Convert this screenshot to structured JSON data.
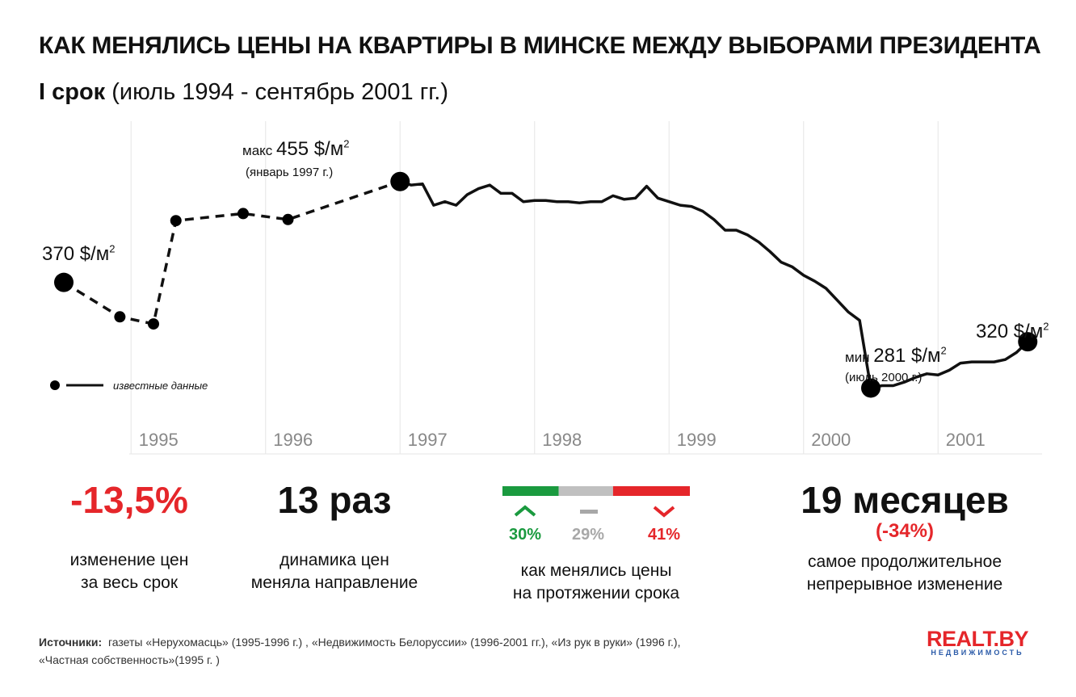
{
  "header": {
    "title": "КАК МЕНЯЛИСЬ ЦЕНЫ НА КВАРТИРЫ В МИНСКЕ МЕЖДУ ВЫБОРАМИ ПРЕЗИДЕНТА",
    "subtitle_bold": "I срок",
    "subtitle_rest": " (июль 1994 - сентябрь 2001 гг.)"
  },
  "chart_data": {
    "type": "line",
    "title": "КАК МЕНЯЛИСЬ ЦЕНЫ НА КВАРТИРЫ В МИНСКЕ МЕЖДУ ВЫБОРАМИ ПРЕЗИДЕНТА",
    "subtitle": "I срок (июль 1994 - сентябрь 2001 гг.)",
    "unit": "$/м²",
    "x_tick_labels": [
      "1995",
      "1996",
      "1997",
      "1998",
      "1999",
      "2000",
      "2001"
    ],
    "grid": "vertical",
    "ylim": [
      250,
      480
    ],
    "known_data": {
      "name": "известные данные",
      "style": "dashed",
      "points": [
        {
          "x": "1994-07",
          "y": 370
        },
        {
          "x": "1994-12",
          "y": 341
        },
        {
          "x": "1995-03",
          "y": 335
        },
        {
          "x": "1995-05",
          "y": 422
        },
        {
          "x": "1995-11",
          "y": 428
        },
        {
          "x": "1996-03",
          "y": 423
        },
        {
          "x": "1997-01",
          "y": 455
        }
      ]
    },
    "series": [
      {
        "style": "solid",
        "points": [
          {
            "x": "1997-01",
            "y": 455
          },
          {
            "x": "1997-02",
            "y": 452
          },
          {
            "x": "1997-03",
            "y": 453
          },
          {
            "x": "1997-04",
            "y": 435
          },
          {
            "x": "1997-05",
            "y": 438
          },
          {
            "x": "1997-06",
            "y": 435
          },
          {
            "x": "1997-07",
            "y": 444
          },
          {
            "x": "1997-08",
            "y": 449
          },
          {
            "x": "1997-09",
            "y": 452
          },
          {
            "x": "1997-10",
            "y": 445
          },
          {
            "x": "1997-11",
            "y": 445
          },
          {
            "x": "1997-12",
            "y": 438
          },
          {
            "x": "1998-01",
            "y": 439
          },
          {
            "x": "1998-02",
            "y": 439
          },
          {
            "x": "1998-03",
            "y": 438
          },
          {
            "x": "1998-04",
            "y": 438
          },
          {
            "x": "1998-05",
            "y": 437
          },
          {
            "x": "1998-06",
            "y": 438
          },
          {
            "x": "1998-07",
            "y": 438
          },
          {
            "x": "1998-08",
            "y": 443
          },
          {
            "x": "1998-09",
            "y": 440
          },
          {
            "x": "1998-10",
            "y": 441
          },
          {
            "x": "1998-11",
            "y": 451
          },
          {
            "x": "1998-12",
            "y": 441
          },
          {
            "x": "1999-01",
            "y": 438
          },
          {
            "x": "1999-02",
            "y": 435
          },
          {
            "x": "1999-03",
            "y": 434
          },
          {
            "x": "1999-04",
            "y": 430
          },
          {
            "x": "1999-05",
            "y": 423
          },
          {
            "x": "1999-06",
            "y": 414
          },
          {
            "x": "1999-07",
            "y": 414
          },
          {
            "x": "1999-08",
            "y": 410
          },
          {
            "x": "1999-09",
            "y": 404
          },
          {
            "x": "1999-10",
            "y": 396
          },
          {
            "x": "1999-11",
            "y": 387
          },
          {
            "x": "1999-12",
            "y": 383
          },
          {
            "x": "2000-01",
            "y": 376
          },
          {
            "x": "2000-02",
            "y": 371
          },
          {
            "x": "2000-03",
            "y": 365
          },
          {
            "x": "2000-04",
            "y": 355
          },
          {
            "x": "2000-05",
            "y": 345
          },
          {
            "x": "2000-06",
            "y": 338
          },
          {
            "x": "2000-07",
            "y": 281
          },
          {
            "x": "2000-08",
            "y": 283
          },
          {
            "x": "2000-09",
            "y": 283
          },
          {
            "x": "2000-10",
            "y": 286
          },
          {
            "x": "2000-11",
            "y": 290
          },
          {
            "x": "2000-12",
            "y": 293
          },
          {
            "x": "2001-01",
            "y": 292
          },
          {
            "x": "2001-02",
            "y": 296
          },
          {
            "x": "2001-03",
            "y": 302
          },
          {
            "x": "2001-04",
            "y": 303
          },
          {
            "x": "2001-05",
            "y": 303
          },
          {
            "x": "2001-06",
            "y": 303
          },
          {
            "x": "2001-07",
            "y": 305
          },
          {
            "x": "2001-08",
            "y": 311
          },
          {
            "x": "2001-09",
            "y": 320
          }
        ]
      }
    ],
    "annotations": {
      "start": {
        "value": "370 $/м",
        "sup": "2"
      },
      "max": {
        "prefix": "макс ",
        "value": "455 $/м",
        "sup": "2",
        "date": "(январь 1997 г.)"
      },
      "min": {
        "prefix": "мин ",
        "value": "281 $/м",
        "sup": "2",
        "date": "(июль 2000 г.)"
      },
      "end": {
        "value": "320 $/м",
        "sup": "2"
      }
    },
    "legend": {
      "label": "известные данные",
      "placement": "bottom-left"
    }
  },
  "stats": {
    "change": {
      "value": "-13,5%",
      "desc1": "изменение цен",
      "desc2": "за весь срок",
      "color": "#e5262a"
    },
    "direction": {
      "value": "13 раз",
      "desc1": "динамика цен",
      "desc2": "меняла направление"
    },
    "distribution": {
      "up": {
        "value": "30%",
        "fraction": 0.3,
        "color": "#1a9a3f"
      },
      "flat": {
        "value": "29%",
        "fraction": 0.29,
        "color": "#c0c0c0"
      },
      "down": {
        "value": "41%",
        "fraction": 0.41,
        "color": "#e5262a"
      },
      "desc1": "как менялись цены",
      "desc2": "на протяжении срока"
    },
    "longest": {
      "value": "19 месяцев",
      "change": "(-34%)",
      "desc1": "самое продолжительное",
      "desc2": "непрерывное изменение"
    }
  },
  "footer": {
    "sources_label": "Источники:",
    "sources_line1": "газеты «Нерухомасць» (1995-1996 г.) , «Недвижимость Белоруссии» (1996-2001 гг.),  «Из рук в руки» (1996 г.),",
    "sources_line2": "«Частная собственность»(1995 г. )",
    "logo_main": "REALT.BY",
    "logo_sub": "НЕДВИЖИМОСТЬ"
  }
}
